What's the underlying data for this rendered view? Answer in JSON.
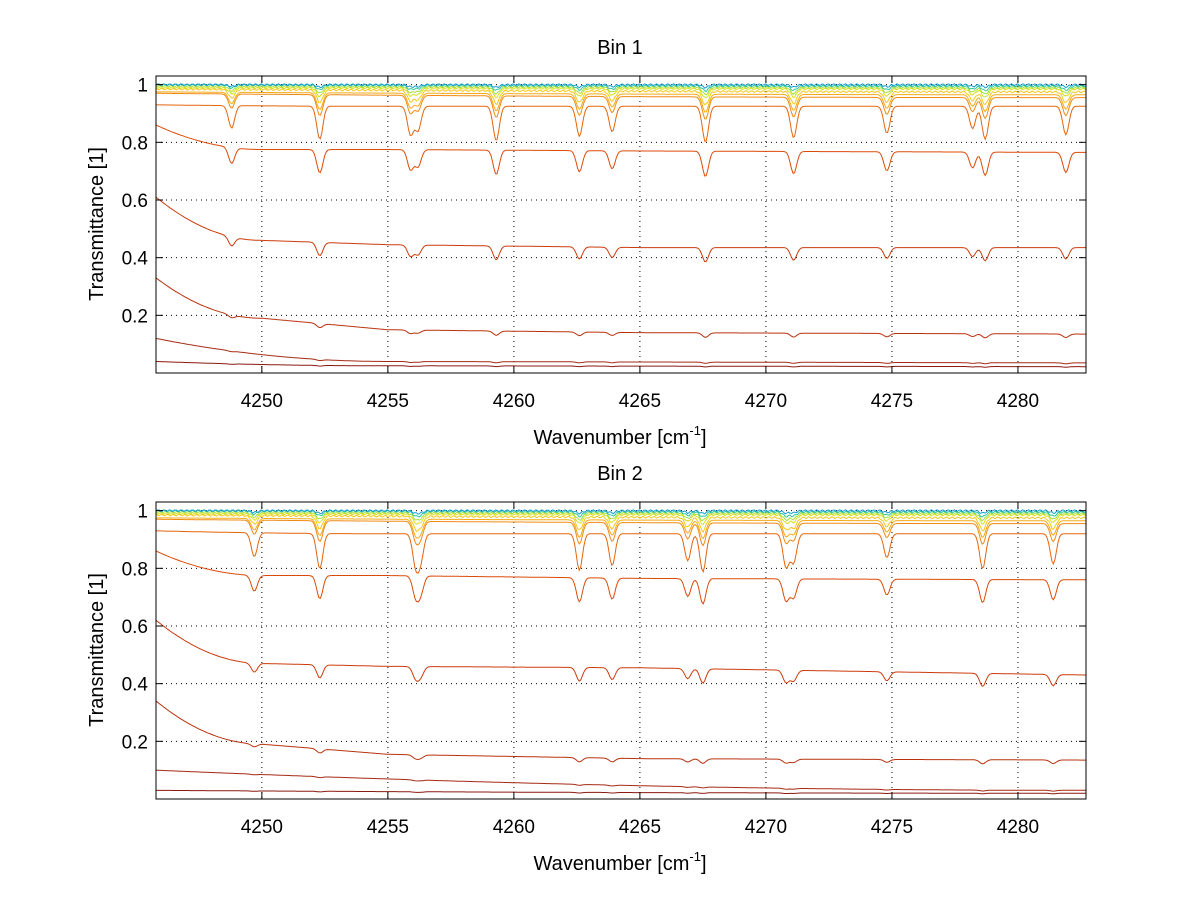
{
  "chart_data": [
    {
      "type": "line",
      "title": "Bin 1",
      "xlabel": "Wavenumber [cm",
      "xlabel_sup": "-1",
      "xlabel_end": "]",
      "ylabel": "Transmittance [1]",
      "xlim": [
        4245.8,
        4282.7
      ],
      "ylim": [
        0.0,
        1.03
      ],
      "xticks": [
        4250,
        4255,
        4260,
        4265,
        4270,
        4275,
        4280
      ],
      "xtick_labels": [
        "4250",
        "4255",
        "4260",
        "4265",
        "4270",
        "4275",
        "4280"
      ],
      "yticks": [
        0.2,
        0.4,
        0.6,
        0.8,
        1.0
      ],
      "ytick_labels": [
        "0.2",
        "0.4",
        "0.6",
        "0.8",
        "1"
      ],
      "grid": true,
      "line_colors": [
        "#8a1a10",
        "#a52a14",
        "#b8320e",
        "#cc3b0c",
        "#dc4a08",
        "#e6640a",
        "#f08a14",
        "#f5aa18",
        "#f3c81a",
        "#d9e01a",
        "#a8e040",
        "#30c8a0",
        "#1a9fd0"
      ],
      "series": [
        {
          "values_at_x": {
            "start": 0.04,
            "4255": 0.025,
            "end": 0.022
          },
          "decay_start": 0.09
        },
        {
          "values_at_x": {
            "start": 0.12,
            "4255": 0.04,
            "end": 0.035
          },
          "decay_start": 0.12
        },
        {
          "values_at_x": {
            "start": 0.33,
            "4250": 0.19,
            "4255": 0.15,
            "4265": 0.14,
            "end": 0.135
          }
        },
        {
          "values_at_x": {
            "start": 0.61,
            "4250": 0.46,
            "4255": 0.445,
            "4265": 0.435,
            "end": 0.435
          }
        },
        {
          "values_at_x": {
            "start": 0.86,
            "4250": 0.775,
            "4255": 0.775,
            "4265": 0.77,
            "end": 0.765
          }
        },
        {
          "values_at_x": {
            "start": 0.93,
            "4255": 0.925,
            "end": 0.925
          }
        },
        {
          "values_at_x": {
            "start": 0.97,
            "end": 0.955
          }
        },
        {
          "values_at_x": {
            "start": 0.975,
            "end": 0.965
          }
        },
        {
          "values_at_x": {
            "start": 0.985,
            "end": 0.975
          }
        },
        {
          "values_at_x": {
            "start": 0.99,
            "end": 0.985
          }
        },
        {
          "values_at_x": {
            "start": 0.995,
            "end": 0.99
          }
        },
        {
          "values_at_x": {
            "start": 1.0,
            "end": 0.995
          }
        },
        {
          "values_at_x": {
            "start": 1.0,
            "end": 1.0
          }
        }
      ],
      "absorption_lines": [
        4248.8,
        4252.3,
        4255.9,
        4256.2,
        4259.3,
        4262.6,
        4263.9,
        4267.6,
        4271.1,
        4274.8,
        4278.2,
        4278.7,
        4281.9
      ]
    },
    {
      "type": "line",
      "title": "Bin 2",
      "xlabel": "Wavenumber [cm",
      "xlabel_sup": "-1",
      "xlabel_end": "]",
      "ylabel": "Transmittance [1]",
      "xlim": [
        4245.8,
        4282.7
      ],
      "ylim": [
        0.0,
        1.03
      ],
      "xticks": [
        4250,
        4255,
        4260,
        4265,
        4270,
        4275,
        4280
      ],
      "xtick_labels": [
        "4250",
        "4255",
        "4260",
        "4265",
        "4270",
        "4275",
        "4280"
      ],
      "yticks": [
        0.2,
        0.4,
        0.6,
        0.8,
        1.0
      ],
      "ytick_labels": [
        "0.2",
        "0.4",
        "0.6",
        "0.8",
        "1"
      ],
      "grid": true,
      "line_colors": [
        "#8a1a10",
        "#a52a14",
        "#b8320e",
        "#cc3b0c",
        "#dc4a08",
        "#e6640a",
        "#f08a14",
        "#f5aa18",
        "#f3c81a",
        "#d9e01a",
        "#a8e040",
        "#30c8a0",
        "#1a9fd0"
      ],
      "series": [
        {
          "values_at_x": {
            "start": 0.03,
            "end": 0.02
          }
        },
        {
          "values_at_x": {
            "start": 0.1,
            "end": 0.03
          }
        },
        {
          "values_at_x": {
            "start": 0.34,
            "4250": 0.19,
            "4255": 0.155,
            "4265": 0.14,
            "end": 0.135
          }
        },
        {
          "values_at_x": {
            "start": 0.62,
            "4250": 0.47,
            "4255": 0.46,
            "4265": 0.455,
            "end": 0.43
          }
        },
        {
          "values_at_x": {
            "start": 0.86,
            "4250": 0.775,
            "4255": 0.775,
            "4265": 0.765,
            "end": 0.76
          }
        },
        {
          "values_at_x": {
            "start": 0.93,
            "4255": 0.92,
            "end": 0.92
          }
        },
        {
          "values_at_x": {
            "start": 0.97,
            "end": 0.955
          }
        },
        {
          "values_at_x": {
            "start": 0.975,
            "end": 0.965
          }
        },
        {
          "values_at_x": {
            "start": 0.985,
            "end": 0.975
          }
        },
        {
          "values_at_x": {
            "start": 0.99,
            "end": 0.985
          }
        },
        {
          "values_at_x": {
            "start": 0.995,
            "end": 0.99
          }
        },
        {
          "values_at_x": {
            "start": 1.0,
            "end": 0.995
          }
        },
        {
          "values_at_x": {
            "start": 1.0,
            "end": 1.0
          }
        }
      ],
      "absorption_lines": [
        4249.7,
        4252.3,
        4256.1,
        4256.3,
        4262.6,
        4263.9,
        4266.9,
        4267.5,
        4270.8,
        4271.1,
        4274.8,
        4278.6,
        4281.4
      ]
    }
  ]
}
